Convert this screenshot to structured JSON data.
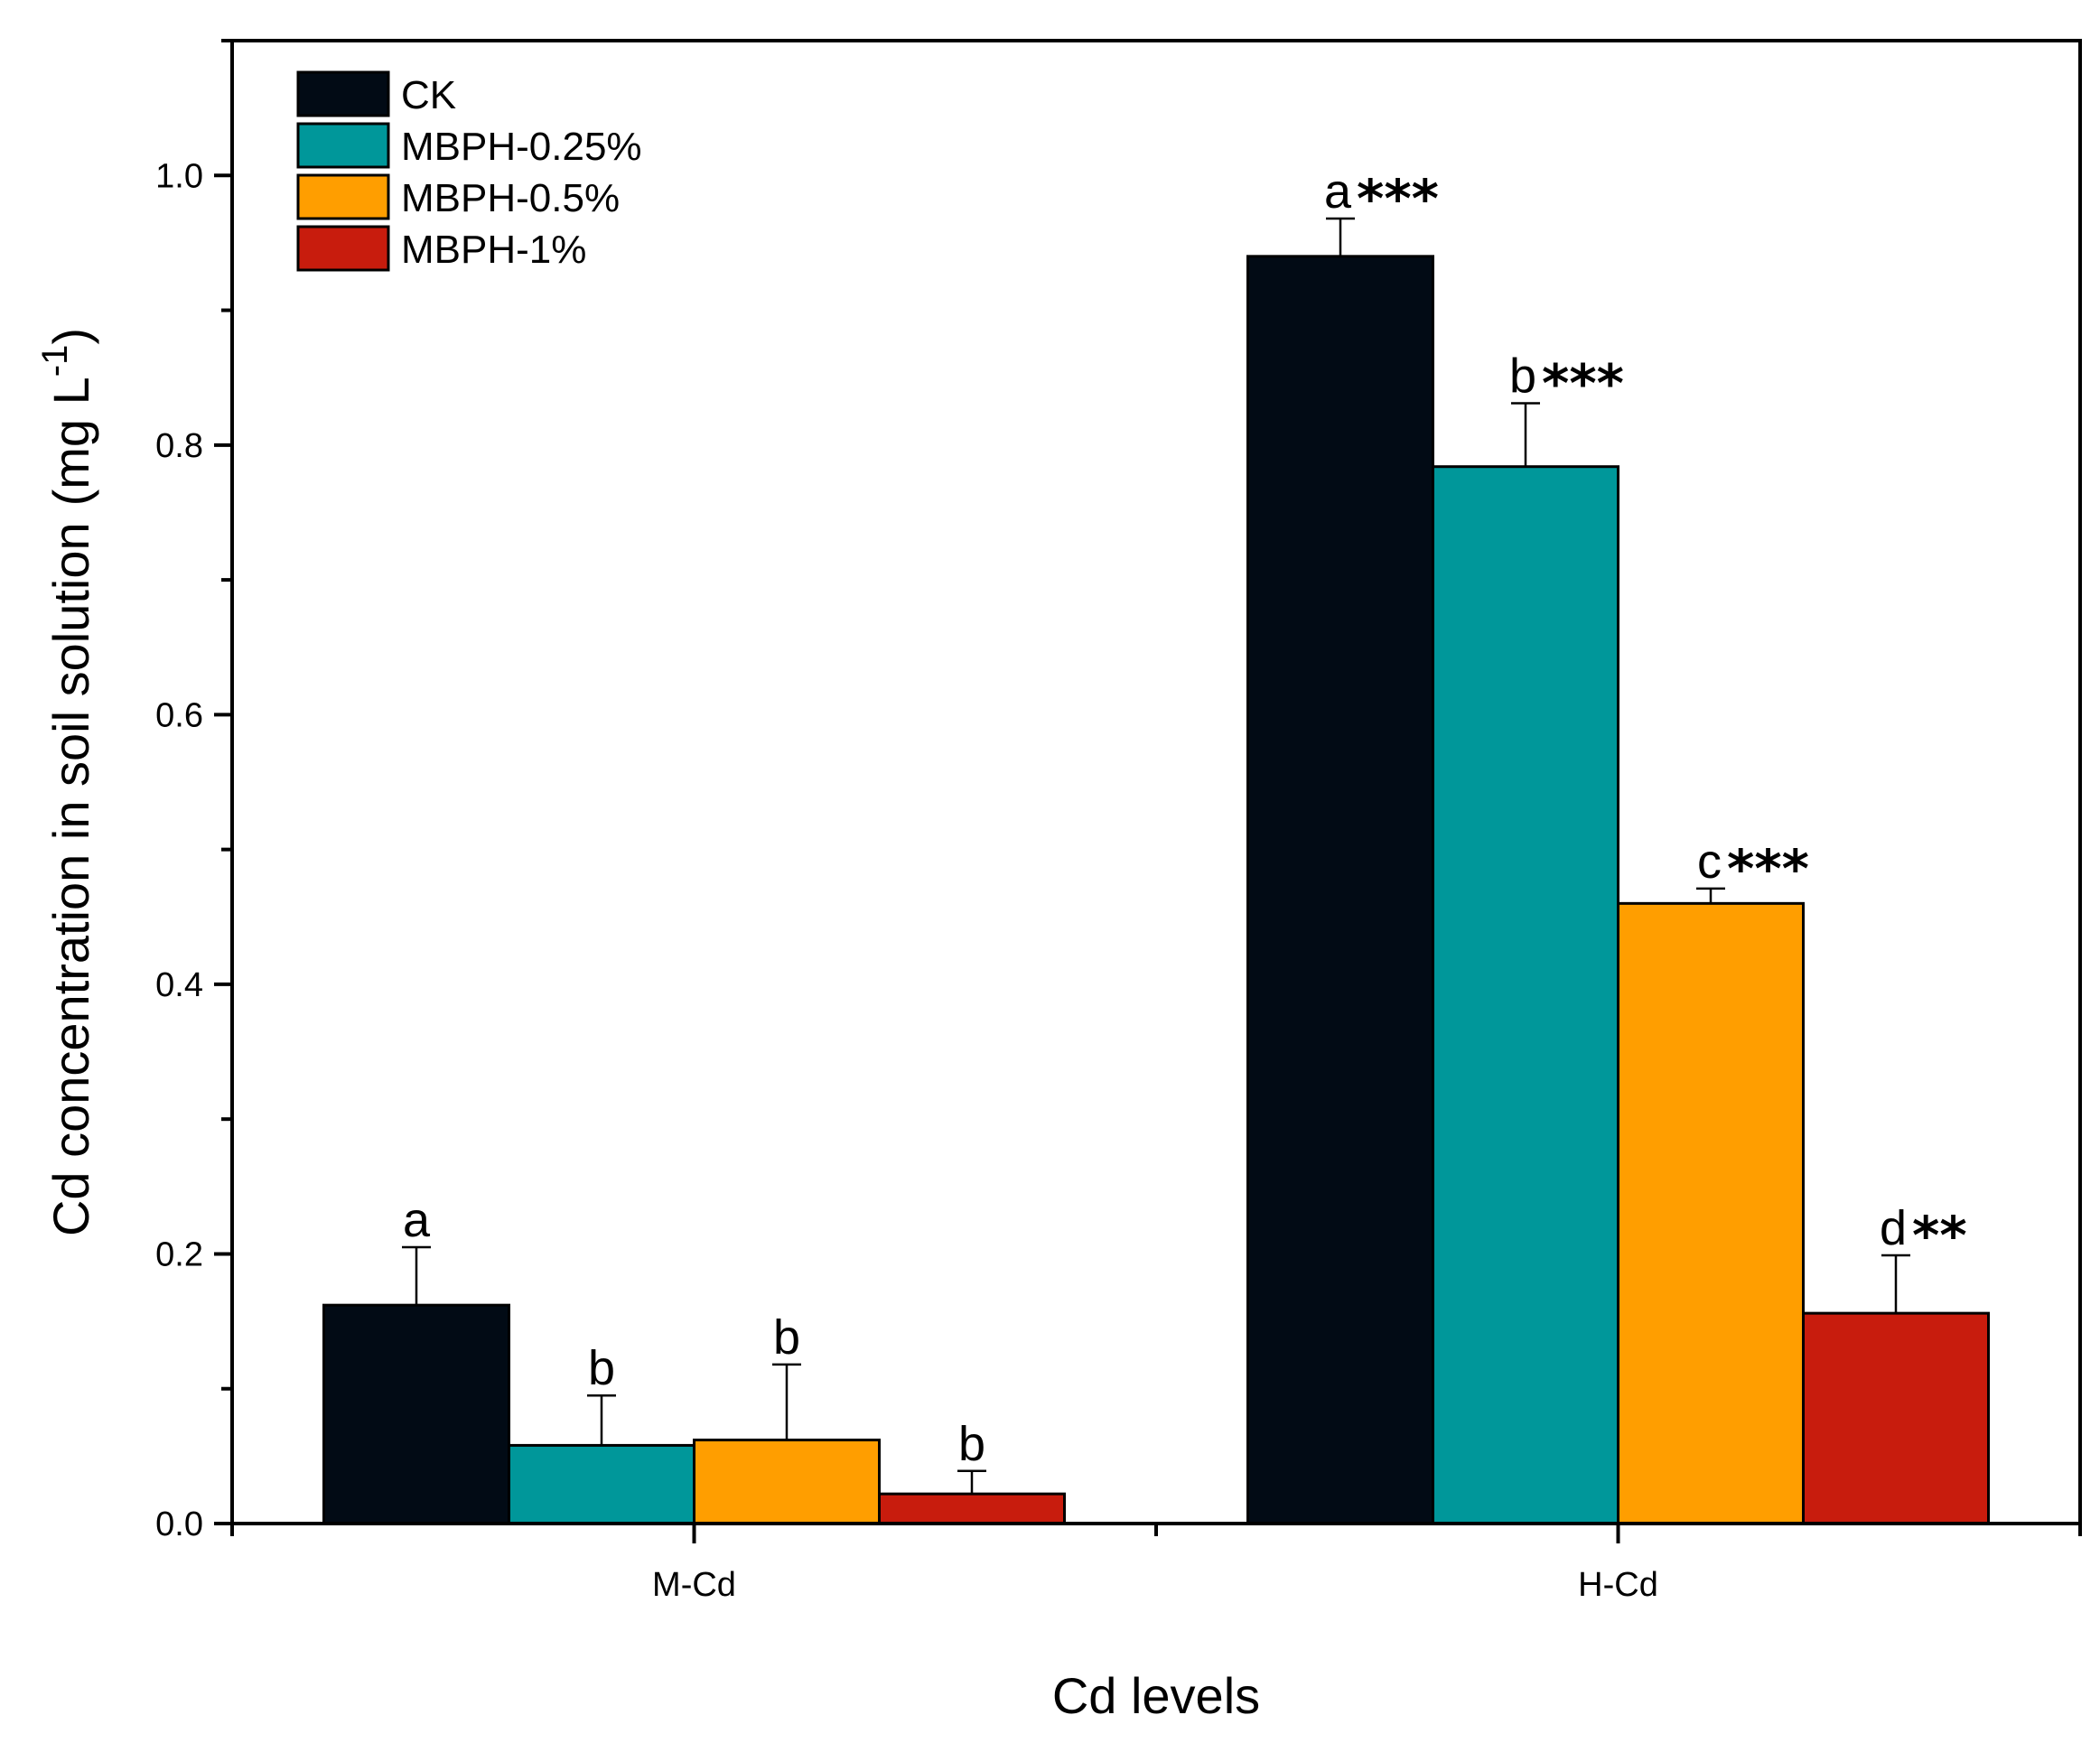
{
  "chart_data": {
    "type": "bar",
    "categories": [
      "M-Cd",
      "H-Cd"
    ],
    "xlabel": "Cd levels",
    "ylabel": "Cd concentration in soil solution",
    "ylabel_unit": "(mg L",
    "ylabel_unit_sup": "-1",
    "ylabel_unit_close": ")",
    "ylim": [
      0,
      1.1
    ],
    "yticks": [
      "0.0",
      "0.2",
      "0.4",
      "0.6",
      "0.8",
      "1.0"
    ],
    "legend_position": "top-left",
    "series": [
      {
        "name": "CK",
        "color": "#020b15",
        "values": [
          0.162,
          0.94
        ],
        "errors": [
          0.043,
          0.028
        ],
        "labels": [
          "a",
          "a"
        ],
        "stars": [
          "",
          "***"
        ]
      },
      {
        "name": "MBPH-0.25%",
        "color": "#00979a",
        "values": [
          0.058,
          0.784
        ],
        "errors": [
          0.037,
          0.047
        ],
        "labels": [
          "b",
          "b"
        ],
        "stars": [
          "",
          "***"
        ]
      },
      {
        "name": "MBPH-0.5%",
        "color": "#ff9e00",
        "values": [
          0.062,
          0.46
        ],
        "errors": [
          0.056,
          0.011
        ],
        "labels": [
          "b",
          "c"
        ],
        "stars": [
          "",
          "***"
        ]
      },
      {
        "name": "MBPH-1%",
        "color": "#c81c0d",
        "values": [
          0.022,
          0.156
        ],
        "errors": [
          0.017,
          0.043
        ],
        "labels": [
          "b",
          "d"
        ],
        "stars": [
          "",
          "**"
        ]
      }
    ]
  }
}
